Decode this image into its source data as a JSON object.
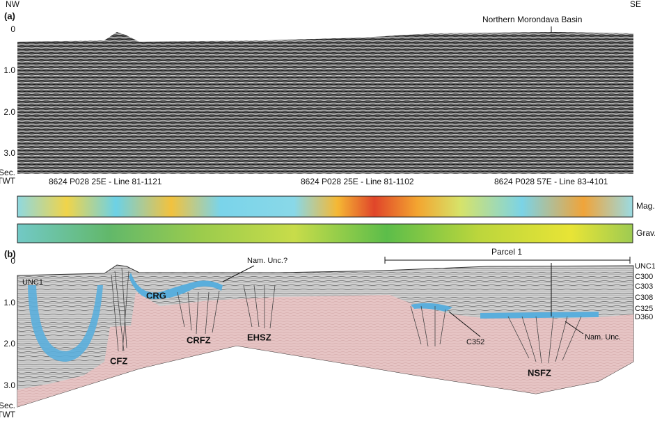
{
  "panel_a": {
    "label": "(a)",
    "left_direction": "NW",
    "right_direction": "SE",
    "basin_label": "Northern Morondava Basin",
    "axis_labels": [
      "0",
      "1.0",
      "2.0",
      "3.0"
    ],
    "axis_unit": [
      "Sec.",
      "TWT"
    ],
    "line_labels": [
      "8624 P028 25E - Line 81-1121",
      "8624 P028 25E - Line 81-1102",
      "8624 P028 57E - Line 83-4101"
    ],
    "mag_label": "Mag.",
    "grav_label": "Grav."
  },
  "panel_b": {
    "label": "(b)",
    "axis_labels": [
      "0",
      "1.0",
      "2.0",
      "3.0"
    ],
    "axis_unit": [
      "Sec.",
      "TWT"
    ],
    "parcel_label": "Parcel 1",
    "unconformity_query": "Nam. Unc.?",
    "left_horizon": "UNC1",
    "horizons": [
      "UNC1",
      "C300",
      "C303",
      "C308",
      "C325",
      "D360"
    ],
    "structures": [
      "CRG",
      "CFZ",
      "CRFZ",
      "EHSZ",
      "C352",
      "Nam. Unc.",
      "NSFZ"
    ]
  }
}
